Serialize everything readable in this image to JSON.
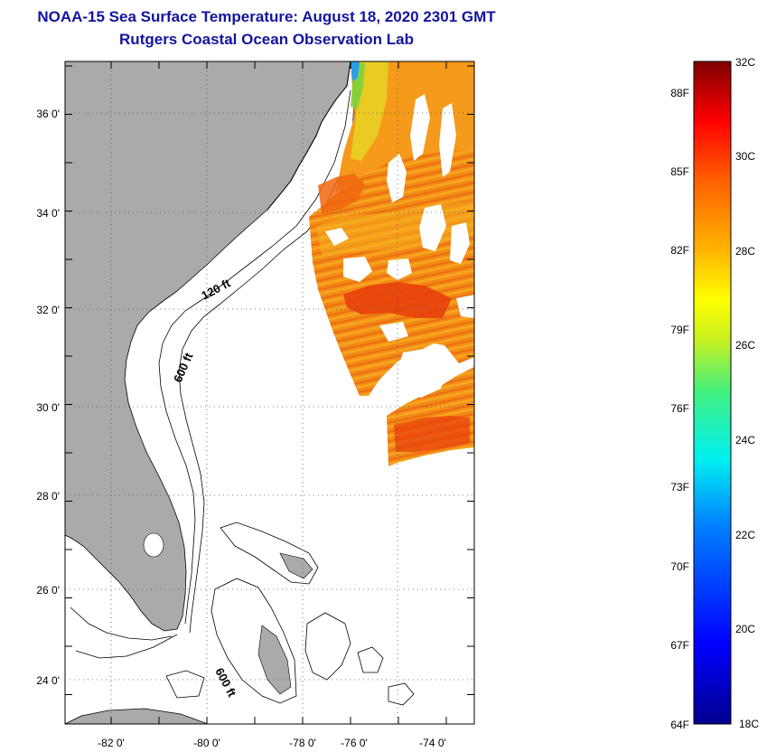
{
  "title_line1": "NOAA-15 Sea Surface Temperature:  August 18, 2020 2301 GMT",
  "title_line2": "Rutgers Coastal Ocean Observation Lab",
  "map": {
    "lat_labels": [
      "36 0'",
      "34 0'",
      "32 0'",
      "30 0'",
      "28 0'",
      "26 0'",
      "24 0'"
    ],
    "lon_labels": [
      "-82 0'",
      "-80 0'",
      "-78 0'",
      "-76 0'",
      "-74 0'"
    ],
    "contour_labels": [
      "120 ft",
      "600 ft",
      "600 ft"
    ],
    "colors": {
      "land": "#aaaaaa",
      "sst_warm": "#f07a14",
      "sst_hot": "#e83a0c",
      "sst_mid": "#f6a81e"
    }
  },
  "colorbar": {
    "celsius_labels": [
      "32C",
      "30C",
      "28C",
      "26C",
      "24C",
      "22C",
      "20C",
      "18C"
    ],
    "fahrenheit_labels": [
      "88F",
      "85F",
      "82F",
      "79F",
      "76F",
      "73F",
      "70F",
      "67F",
      "64F"
    ],
    "range_c": [
      18,
      32
    ]
  }
}
